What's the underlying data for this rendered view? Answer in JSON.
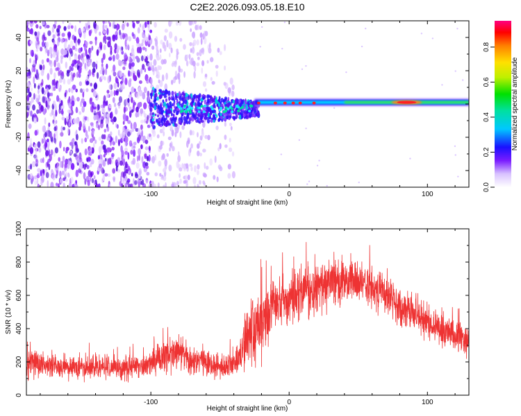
{
  "title": "C2E2.2026.093.05.18.E10",
  "chart_data": [
    {
      "type": "heatmap",
      "xlabel": "Height of straight line (km)",
      "ylabel": "Frequency (Hz)",
      "xlim": [
        -190,
        130
      ],
      "ylim": [
        -50,
        50
      ],
      "xticks": [
        -100,
        0,
        100
      ],
      "xtick_labels": [
        "-100",
        "0",
        "100"
      ],
      "yticks": [
        -40,
        -20,
        0,
        20,
        40
      ],
      "ytick_labels": [
        "-40",
        "-20",
        "0",
        "20",
        "40"
      ],
      "colorbar": {
        "label": "Normalized spectral amplitude",
        "range": [
          0,
          0.95
        ],
        "ticks": [
          0,
          0.2,
          0.4,
          0.6,
          0.8
        ],
        "tick_labels": [
          "0.0",
          "0.2",
          "0.4",
          "0.6",
          "0.8"
        ],
        "colors": [
          "#ffffff",
          "#c9a0ff",
          "#7a1cff",
          "#1a10ff",
          "#00c8ff",
          "#00e060",
          "#bff000",
          "#ffe000",
          "#ff8000",
          "#ff0030",
          "#ff0080"
        ]
      },
      "features": [
        {
          "name": "broadband noise",
          "x_range": [
            -190,
            -40
          ],
          "freq_range": [
            -50,
            50
          ],
          "amplitude": 0.1
        },
        {
          "name": "transition",
          "x_range": [
            -100,
            -25
          ],
          "freq_range": [
            -10,
            10
          ],
          "amplitude": 0.25
        },
        {
          "name": "narrowband signal",
          "x_range": [
            -25,
            130
          ],
          "freq_center": 1,
          "amplitude": 0.5
        },
        {
          "name": "peak",
          "x_range": [
            75,
            95
          ],
          "freq_center": 1,
          "amplitude": 0.9
        }
      ]
    },
    {
      "type": "line",
      "xlabel": "Height of straight line (km)",
      "ylabel": "SNR (10 * v/v)",
      "xlim": [
        -190,
        130
      ],
      "ylim": [
        0,
        1000
      ],
      "xticks": [
        -100,
        0,
        100
      ],
      "xtick_labels": [
        "-100",
        "0",
        "100"
      ],
      "yticks": [
        0,
        200,
        400,
        600,
        800,
        1000
      ],
      "ytick_labels": [
        "0",
        "200",
        "400",
        "600",
        "800",
        "1000"
      ],
      "series": [
        {
          "name": "SNR",
          "color": "#ee3333",
          "x": [
            -190,
            -170,
            -150,
            -130,
            -110,
            -100,
            -90,
            -80,
            -70,
            -60,
            -50,
            -40,
            -35,
            -30,
            -25,
            -20,
            -15,
            -10,
            -5,
            0,
            10,
            20,
            30,
            40,
            50,
            60,
            70,
            80,
            90,
            100,
            110,
            120,
            130
          ],
          "mean": [
            180,
            175,
            170,
            165,
            175,
            185,
            230,
            260,
            205,
            190,
            170,
            180,
            240,
            360,
            410,
            420,
            470,
            540,
            560,
            560,
            620,
            640,
            680,
            700,
            690,
            650,
            600,
            540,
            490,
            440,
            390,
            360,
            330
          ],
          "spread": [
            110,
            100,
            100,
            95,
            100,
            110,
            130,
            150,
            120,
            110,
            105,
            110,
            180,
            300,
            320,
            300,
            250,
            230,
            220,
            220,
            210,
            200,
            200,
            190,
            180,
            170,
            160,
            150,
            150,
            140,
            140,
            130,
            130
          ]
        }
      ]
    }
  ]
}
